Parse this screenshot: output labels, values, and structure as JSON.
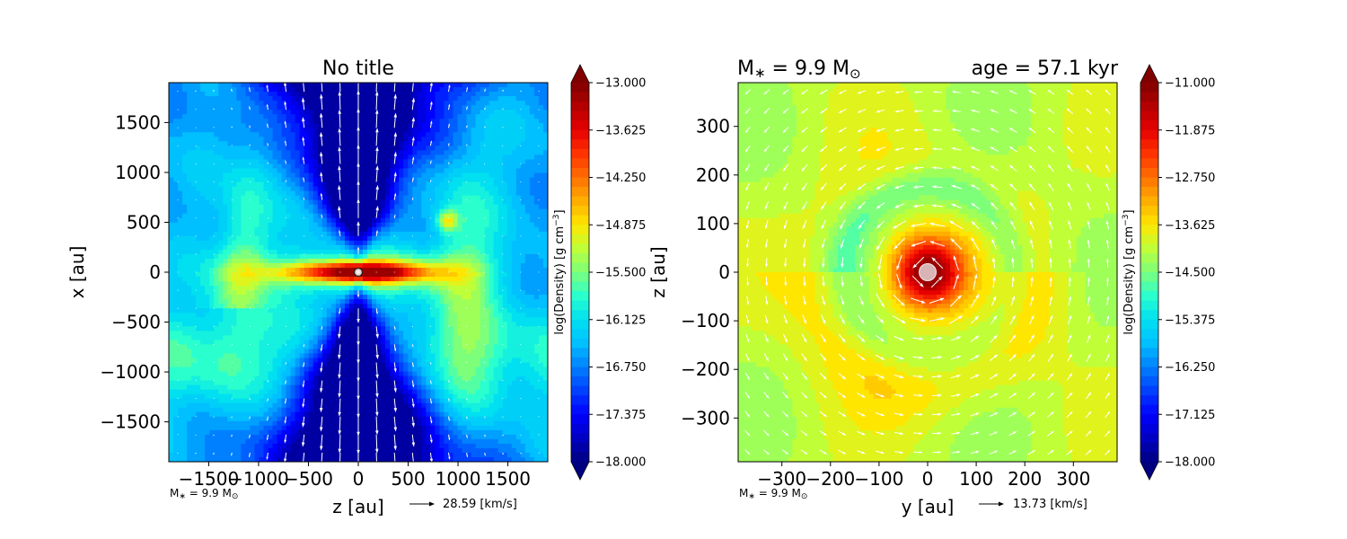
{
  "colors": {
    "jet": [
      "#000080",
      "#0000c4",
      "#0000ff",
      "#0040ff",
      "#0080ff",
      "#00c0ff",
      "#00e0f0",
      "#2affce",
      "#7dff7a",
      "#c0ff37",
      "#ffe600",
      "#ffae00",
      "#ff7000",
      "#ff3300",
      "#e60000",
      "#b40000",
      "#800000"
    ],
    "arrow": "#ffffff",
    "sink": "#d8b4b6"
  },
  "chart_data": [
    {
      "type": "heatmap",
      "title": "No title",
      "xlabel": "z [au]",
      "ylabel": "x [au]",
      "xlim": [
        -1900,
        1900
      ],
      "ylim": [
        -1900,
        1900
      ],
      "xticks": [
        -1500,
        -1000,
        -500,
        0,
        500,
        1000,
        1500
      ],
      "xtick_labels": [
        "−1500",
        "−1000",
        "−500",
        "0",
        "500",
        "1000",
        "1500"
      ],
      "yticks": [
        -1500,
        -1000,
        -500,
        0,
        500,
        1000,
        1500
      ],
      "ytick_labels": [
        "−1500",
        "−1000",
        "−500",
        "0",
        "500",
        "1000",
        "1500"
      ],
      "colorbar": {
        "label": "log(Density) [g cm",
        "label_exp": "−3",
        "label_close": "]",
        "min": -18.0,
        "max": -13.0,
        "extend": "both",
        "ticks": [
          -13.0,
          -13.625,
          -14.25,
          -14.875,
          -15.5,
          -16.125,
          -16.75,
          -17.375,
          -18.0
        ],
        "tick_labels": [
          "−13.000",
          "−13.625",
          "−14.250",
          "−14.875",
          "−15.500",
          "−16.125",
          "−16.750",
          "−17.375",
          "−18.000"
        ]
      },
      "mass_label": "M",
      "mass_sub": "∗",
      "mass_value": " = 9.9 M",
      "mass_sun": "⊙",
      "velocity_key": "28.59 [km/s]",
      "vector_field": "bipolar outflow",
      "grid": false
    },
    {
      "type": "heatmap",
      "title_left_main": "M",
      "title_left_sub": "∗",
      "title_left_value": " = 9.9 M",
      "title_left_sun": "⊙",
      "title_right": "age = 57.1 kyr",
      "xlabel": "y [au]",
      "ylabel": "z [au]",
      "xlim": [
        -390,
        390
      ],
      "ylim": [
        -390,
        390
      ],
      "xticks": [
        -300,
        -200,
        -100,
        0,
        100,
        200,
        300
      ],
      "xtick_labels": [
        "−300",
        "−200",
        "−100",
        "0",
        "100",
        "200",
        "300"
      ],
      "yticks": [
        -300,
        -200,
        -100,
        0,
        100,
        200,
        300
      ],
      "ytick_labels": [
        "−300",
        "−200",
        "−100",
        "0",
        "100",
        "200",
        "300"
      ],
      "colorbar": {
        "label": "log(Density) [g cm",
        "label_exp": "−3",
        "label_close": "]",
        "min": -18.0,
        "max": -11.0,
        "extend": "both",
        "ticks": [
          -11.0,
          -11.875,
          -12.75,
          -13.625,
          -14.5,
          -15.375,
          -16.25,
          -17.125,
          -18.0
        ],
        "tick_labels": [
          "−11.000",
          "−11.875",
          "−12.750",
          "−13.625",
          "−14.500",
          "−15.375",
          "−16.250",
          "−17.125",
          "−18.000"
        ]
      },
      "mass_label": "M",
      "mass_sub": "∗",
      "mass_value": " = 9.9 M",
      "mass_sun": "⊙",
      "velocity_key": "13.73 [km/s]",
      "vector_field": "rotating disk",
      "grid": false
    }
  ]
}
